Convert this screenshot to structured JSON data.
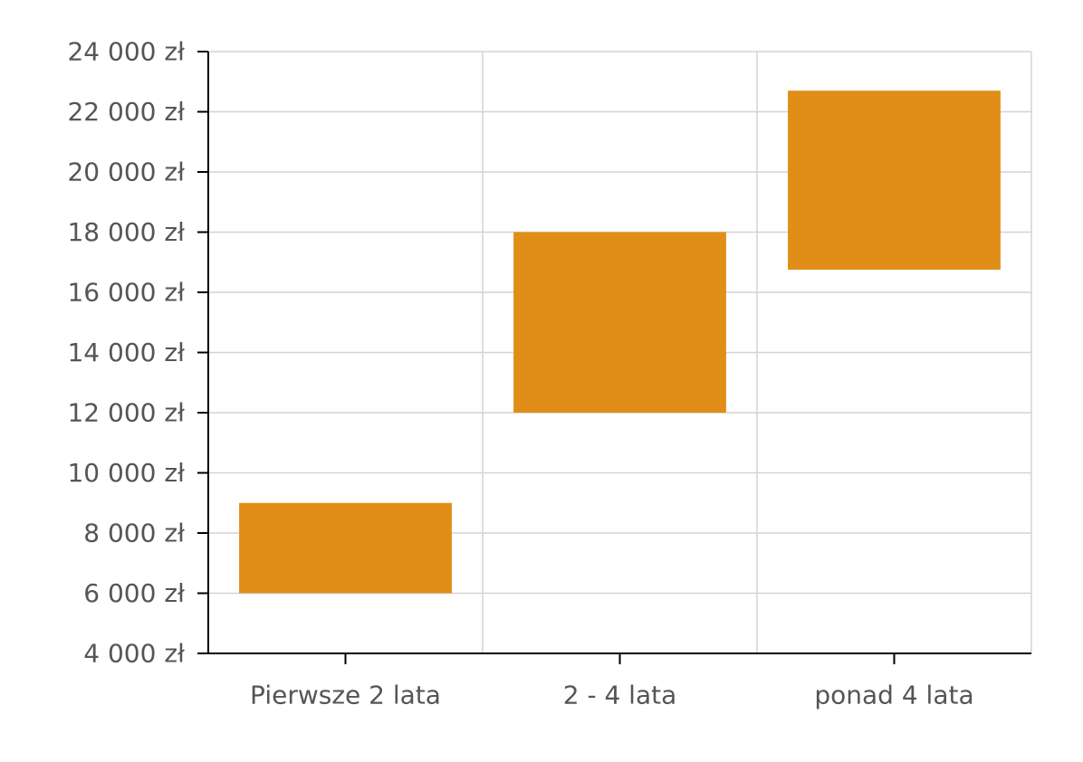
{
  "chart_data": {
    "type": "bar",
    "subtype": "floating-range",
    "title": "",
    "xlabel": "",
    "ylabel": "",
    "categories": [
      "Pierwsze 2 lata",
      "2 - 4 lata",
      "ponad 4 lata"
    ],
    "ranges": [
      {
        "low": 6000,
        "high": 9000
      },
      {
        "low": 12000,
        "high": 18000
      },
      {
        "low": 16750,
        "high": 22700
      }
    ],
    "ylim": [
      4000,
      24000
    ],
    "yticks": [
      4000,
      6000,
      8000,
      10000,
      12000,
      14000,
      16000,
      18000,
      20000,
      22000,
      24000
    ],
    "ytick_labels": [
      "4 000 zł",
      "6 000 zł",
      "8 000 zł",
      "10 000 zł",
      "12 000 zł",
      "14 000 zł",
      "16 000 zł",
      "18 000 zł",
      "20 000 zł",
      "22 000 zł",
      "24 000 zł"
    ],
    "grid": true,
    "legend": "none",
    "bar_color": "#E08E17"
  }
}
